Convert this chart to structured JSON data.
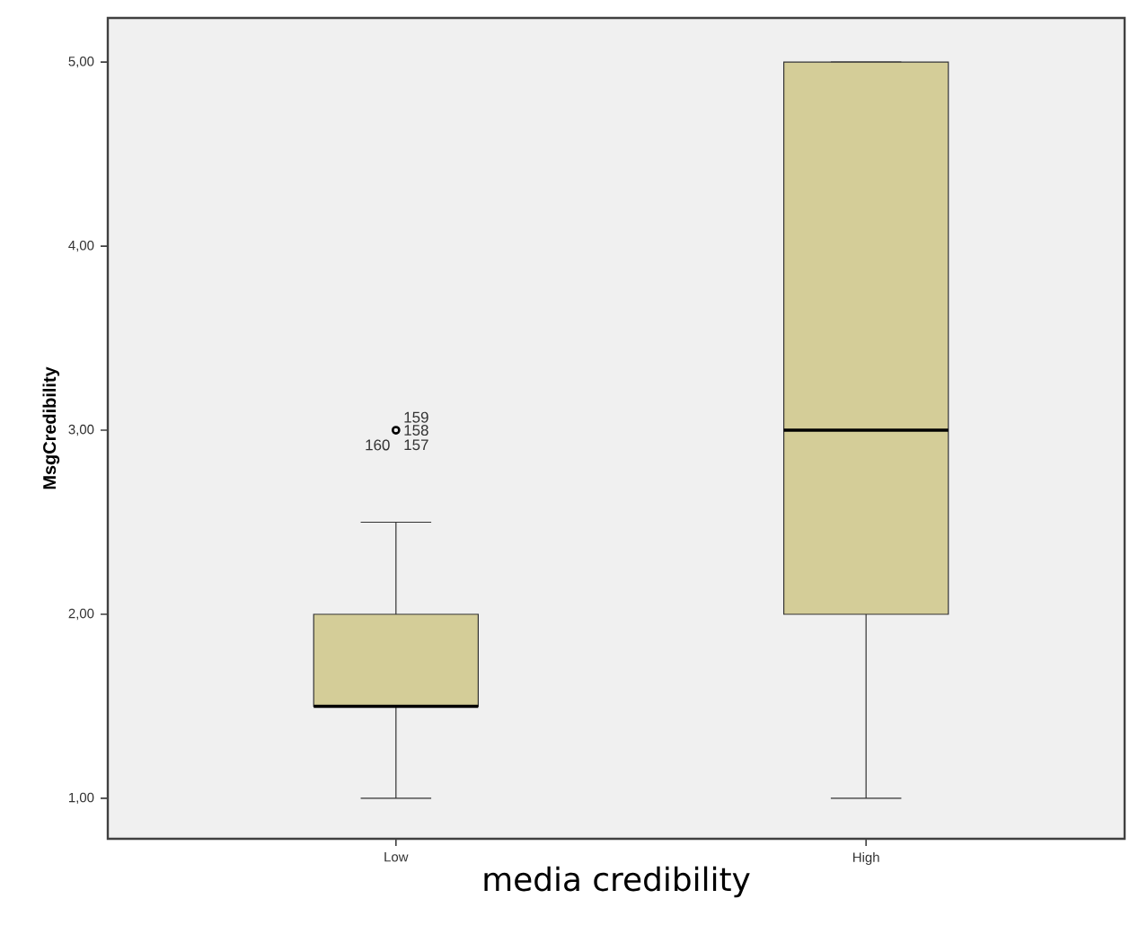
{
  "chart_data": {
    "type": "box",
    "xlabel": "media credibility",
    "ylabel": "MsgCredibility",
    "categories": [
      "Low",
      "High"
    ],
    "boxes": [
      {
        "low": 1,
        "q1": 1.5,
        "median": 1.5,
        "q3": 2,
        "high": 2.5,
        "outliers": [
          3
        ]
      },
      {
        "low": 1,
        "q1": 2,
        "median": 3,
        "q3": 5,
        "high": 5
      }
    ],
    "color": "#d4cd98",
    "ylim": [
      0.78,
      5.24
    ],
    "yticks": [
      {
        "value": 1,
        "label": "1,00"
      },
      {
        "value": 2,
        "label": "2,00"
      },
      {
        "value": 3,
        "label": "3,00"
      },
      {
        "value": 4,
        "label": "4,00"
      },
      {
        "value": 5,
        "label": "5,00"
      }
    ],
    "marker": "circle",
    "annotations": [
      "159",
      "158",
      "160",
      "157"
    ]
  }
}
